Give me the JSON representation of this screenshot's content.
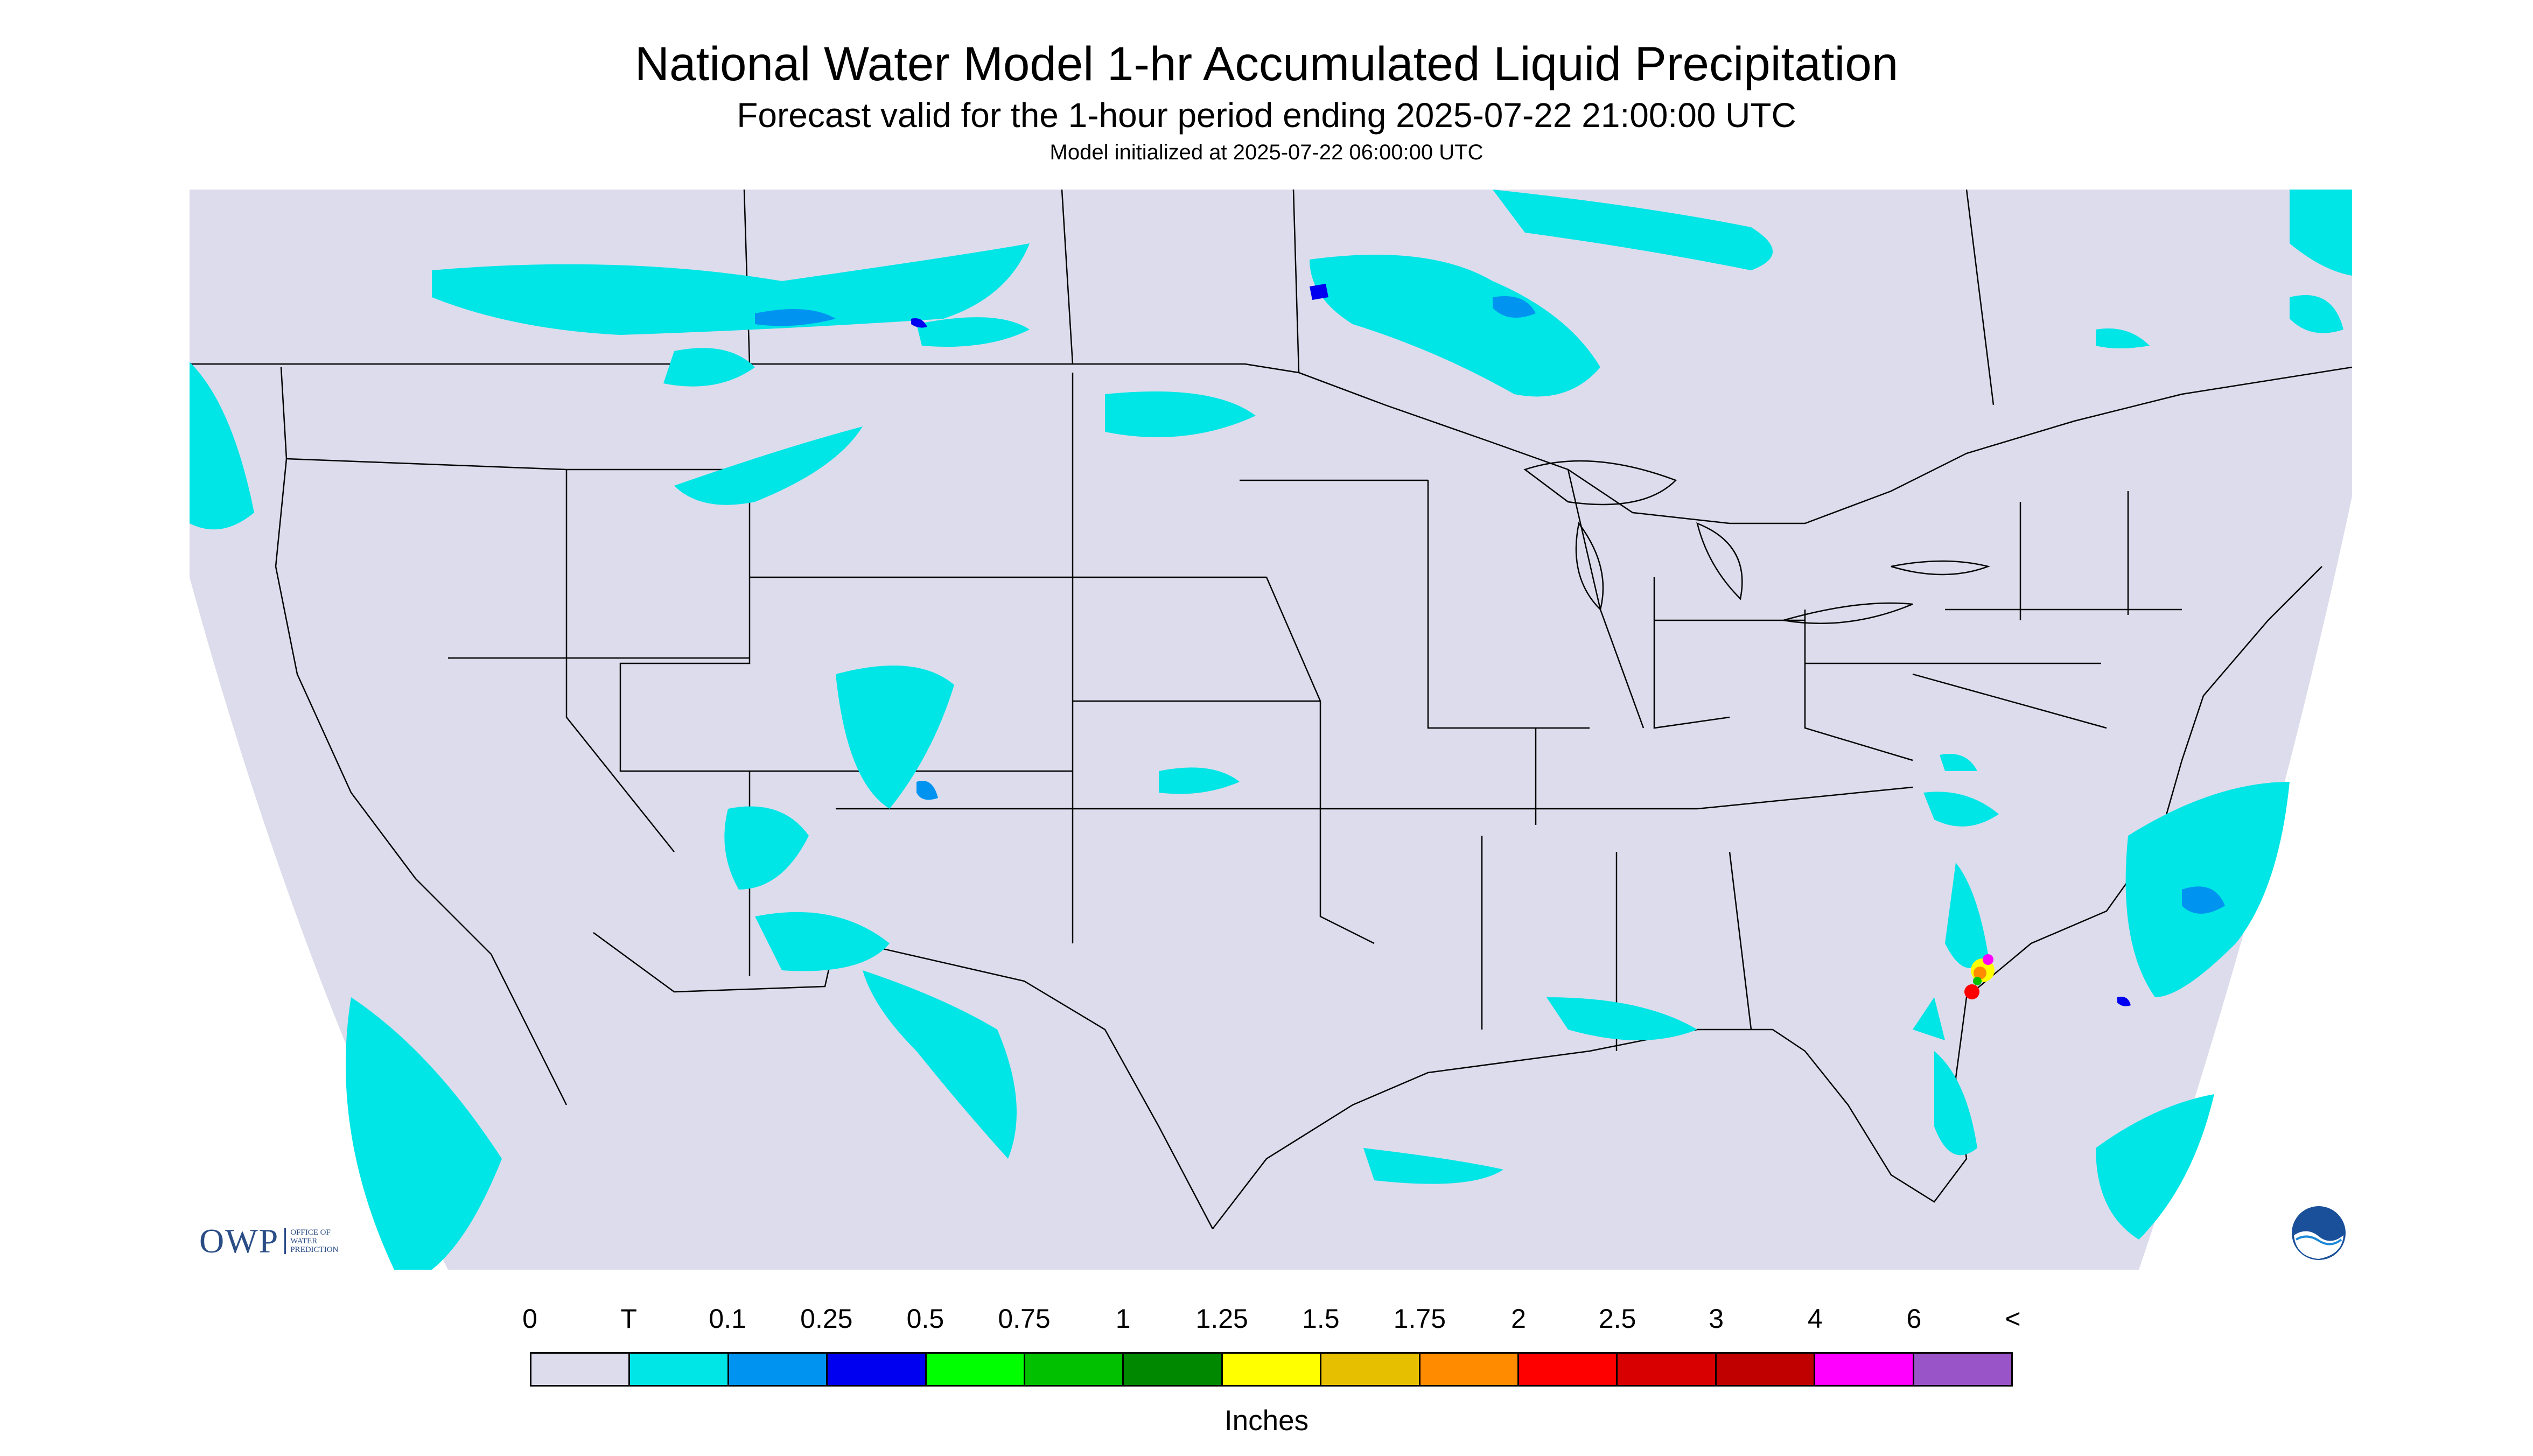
{
  "title": "National Water Model 1-hr Accumulated Liquid Precipitation",
  "subtitle": "Forecast valid for the 1-hour period ending 2025-07-22 21:00:00 UTC",
  "init_line": "Model initialized at 2025-07-22 06:00:00 UTC",
  "legend": {
    "labels": [
      "0",
      "T",
      "0.1",
      "0.25",
      "0.5",
      "0.75",
      "1",
      "1.25",
      "1.5",
      "1.75",
      "2",
      "2.5",
      "3",
      "4",
      "6",
      "<"
    ],
    "colors": [
      "#dcdcec",
      "#00e5e5",
      "#0094f0",
      "#0000f0",
      "#00ff00",
      "#00c000",
      "#008800",
      "#ffff00",
      "#e6c000",
      "#ff8c00",
      "#ff0000",
      "#d80000",
      "#c00000",
      "#ff00ff",
      "#9955c8"
    ],
    "units": "Inches"
  },
  "logos": {
    "owp": "OWP",
    "owp_sub": [
      "OFFICE OF",
      "WATER",
      "PREDICTION"
    ],
    "noaa": "NOAA"
  },
  "map": {
    "background_color": "#dcdcec",
    "no_data_color": "#ffffff",
    "region": "Contiguous United States"
  }
}
